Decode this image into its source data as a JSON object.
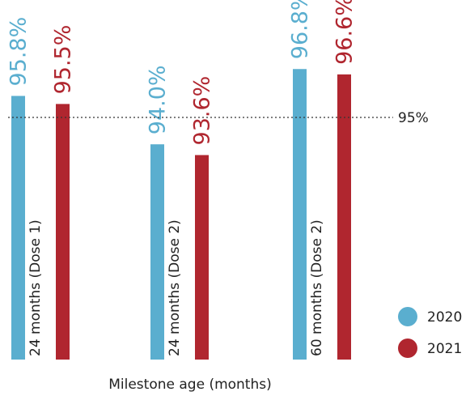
{
  "chart_data": {
    "type": "bar",
    "categories": [
      "24 months (Dose 1)",
      "24 months (Dose 2)",
      "60 months (Dose 2)"
    ],
    "series": [
      {
        "name": "2020",
        "color": "#5aaecf",
        "values": [
          95.8,
          94.0,
          96.8
        ]
      },
      {
        "name": "2021",
        "color": "#b0262f",
        "values": [
          95.5,
          93.6,
          96.6
        ]
      }
    ],
    "value_labels": [
      [
        "95.8%",
        "95.5%"
      ],
      [
        "94.0%",
        "93.6%"
      ],
      [
        "96.8%",
        "96.6%"
      ]
    ],
    "reference_line": {
      "value": 95,
      "label": "95%"
    },
    "xlabel": "Milestone age (months)",
    "ylabel": "",
    "legend_position": "bottom-right",
    "grid": false
  }
}
